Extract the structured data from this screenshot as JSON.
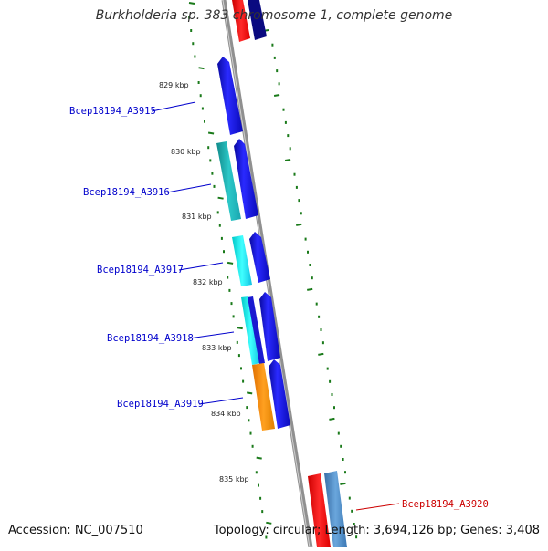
{
  "title": "Burkholderia sp. 383 chromosome 1, complete genome",
  "accession_text": "Accession: NC_007510",
  "stats_text": "Topology: circular; Length: 3,694,126 bp; Genes: 3,408",
  "kbp_ticks": [
    "829 kbp",
    "830 kbp",
    "831 kbp",
    "832 kbp",
    "833 kbp",
    "834 kbp",
    "835 kbp"
  ],
  "genes": [
    {
      "name": "Bcep18194_A3915",
      "color": "#0000cc"
    },
    {
      "name": "Bcep18194_A3916",
      "color": "#0000cc"
    },
    {
      "name": "Bcep18194_A3917",
      "color": "#0000cc"
    },
    {
      "name": "Bcep18194_A3918",
      "color": "#0000cc"
    },
    {
      "name": "Bcep18194_A3919",
      "color": "#0000cc"
    },
    {
      "name": "Bcep18194_A3920",
      "color": "#cc0000"
    }
  ],
  "colors": {
    "backbone": "#888888",
    "tick": "#1a7a1a",
    "blue_feature": "#1010e0",
    "cyan_feature": "#00d8d8",
    "teal_feature": "#20b8b8",
    "orange_feature": "#ff8c00",
    "red_feature": "#ee1111",
    "steel_feature": "#4a86c0",
    "navy_feature": "#0a0a80"
  }
}
